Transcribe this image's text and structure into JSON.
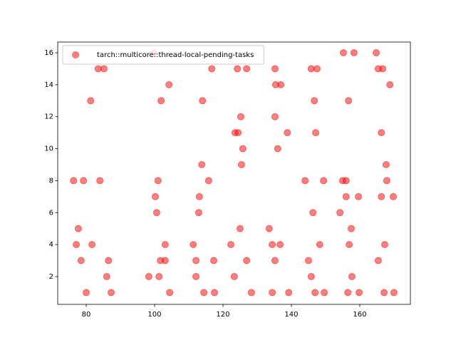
{
  "chart_data": {
    "type": "scatter",
    "x": [
      99.8,
      155.2,
      158.3,
      164.8,
      83.5,
      85.2,
      116.7,
      124.2,
      126.9,
      135.2,
      145.8,
      147.5,
      165.4,
      166.7,
      104.2,
      135.4,
      136.9,
      168.8,
      81.3,
      101.9,
      114.0,
      146.7,
      156.7,
      125.2,
      135.2,
      123.5,
      124.4,
      138.8,
      147.1,
      166.3,
      125.8,
      136.0,
      113.8,
      125.4,
      167.7,
      76.3,
      79.2,
      84.0,
      101.0,
      115.8,
      144.0,
      149.4,
      155.0,
      156.0,
      167.9,
      100.2,
      113.1,
      156.0,
      159.6,
      166.3,
      169.8,
      100.6,
      112.9,
      146.3,
      154.2,
      77.7,
      125.0,
      133.5,
      157.5,
      77.1,
      81.7,
      103.1,
      111.3,
      122.3,
      134.4,
      136.7,
      148.3,
      156.9,
      167.3,
      78.5,
      86.5,
      101.7,
      103.1,
      112.1,
      117.3,
      126.9,
      135.2,
      145.0,
      165.4,
      86.0,
      98.3,
      101.3,
      112.1,
      123.3,
      145.8,
      157.7,
      80.0,
      87.3,
      104.4,
      114.4,
      117.5,
      128.3,
      134.4,
      139.2,
      146.9,
      149.6,
      156.5,
      159.8,
      167.1,
      170.0
    ],
    "series": [
      {
        "name": "tarch::multicore::thread-local-pending-tasks",
        "color": "#ff0000",
        "values": [
          16,
          16,
          16,
          16,
          15,
          15,
          15,
          15,
          15,
          15,
          15,
          15,
          15,
          15,
          14,
          14,
          14,
          14,
          13,
          13,
          13,
          13,
          13,
          12,
          12,
          11,
          11,
          11,
          11,
          11,
          10,
          10,
          9,
          9,
          9,
          8,
          8,
          8,
          8,
          8,
          8,
          8,
          8,
          8,
          8,
          7,
          7,
          7,
          7,
          7,
          7,
          6,
          6,
          6,
          6,
          5,
          5,
          5,
          5,
          4,
          4,
          4,
          4,
          4,
          4,
          4,
          4,
          4,
          4,
          3,
          3,
          3,
          3,
          3,
          3,
          3,
          3,
          3,
          3,
          2,
          2,
          2,
          2,
          2,
          2,
          2,
          1,
          1,
          1,
          1,
          1,
          1,
          1,
          1,
          1,
          1,
          1,
          1,
          1,
          1
        ]
      }
    ],
    "xlim": [
      71.67,
      174.8
    ],
    "ylim": [
      0.26,
      16.67
    ],
    "xticks": [
      80,
      100,
      120,
      140,
      160
    ],
    "yticks": [
      2,
      4,
      6,
      8,
      10,
      12,
      14,
      16
    ],
    "legend": "upper-left",
    "grid": false
  }
}
